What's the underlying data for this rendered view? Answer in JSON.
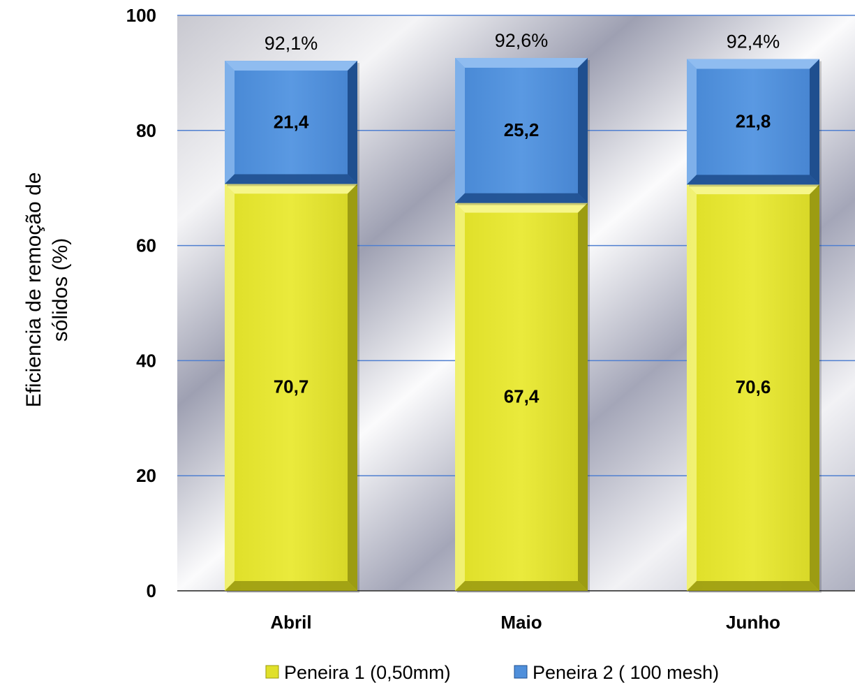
{
  "chart_data": {
    "type": "bar",
    "stacked": true,
    "title": "",
    "xlabel": "",
    "ylabel": "Eficiencia de remoção de sólidos (%)",
    "ylabel_lines": [
      "Eficiencia de remoção de",
      "sólidos (%)"
    ],
    "ylim": [
      0,
      100
    ],
    "yticks": [
      0,
      20,
      40,
      60,
      80,
      100
    ],
    "categories": [
      "Abril",
      "Maio",
      "Junho"
    ],
    "series": [
      {
        "name": "Peneira 1 (0,50mm)",
        "values": [
          70.7,
          67.4,
          70.6
        ],
        "labels": [
          "70,7",
          "67,4",
          "70,6"
        ],
        "color": "#e6e62a"
      },
      {
        "name": "Peneira 2 ( 100 mesh)",
        "values": [
          21.4,
          25.2,
          21.8
        ],
        "labels": [
          "21,4",
          "25,2",
          "21,8"
        ],
        "color": "#4f8fdb"
      }
    ],
    "totals": [
      "92,1%",
      "92,6%",
      "92,4%"
    ],
    "grid": true,
    "legend": "bottom"
  }
}
